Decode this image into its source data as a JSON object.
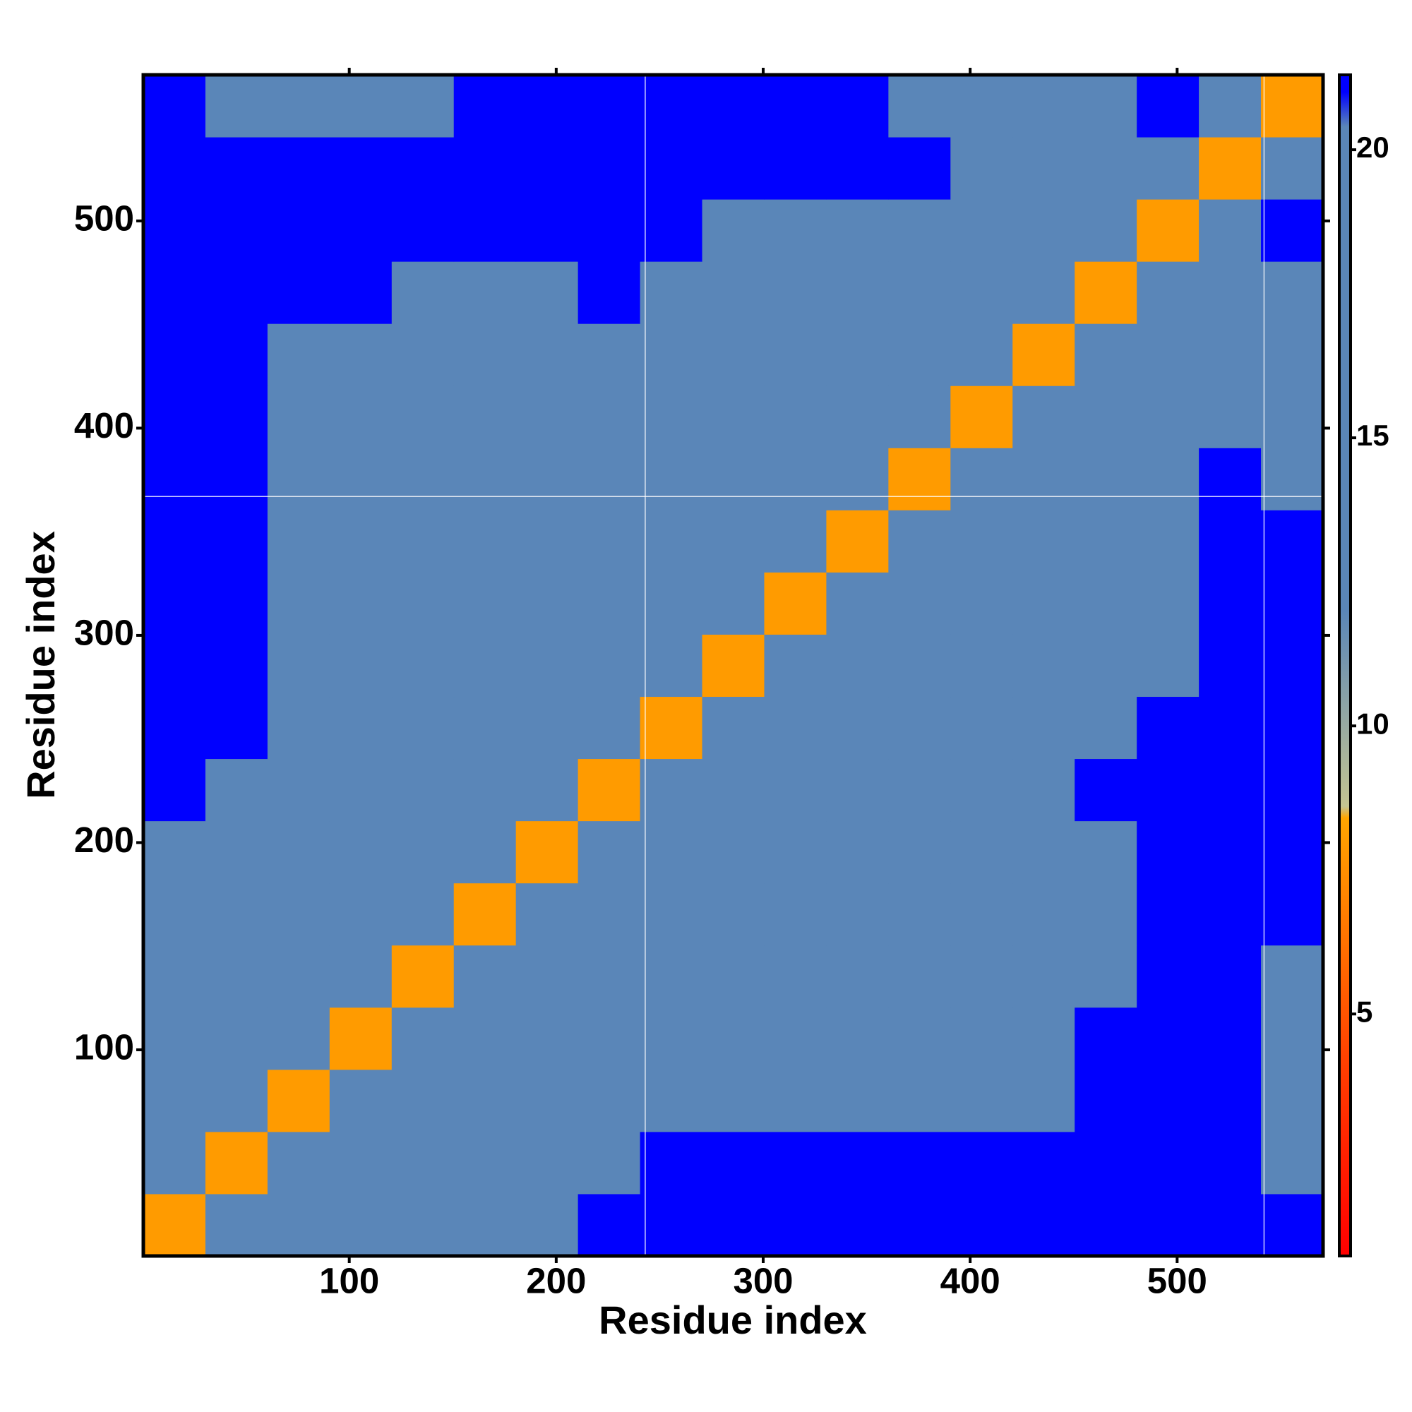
{
  "chart_data": {
    "type": "heatmap",
    "x_label": "Residue index",
    "y_label": "Residue index",
    "bins": [
      0.5,
      30.5,
      60.5,
      90.5,
      120.5,
      150.5,
      180.5,
      210.5,
      240.5,
      270.5,
      300.5,
      330.5,
      360.5,
      390.5,
      420.5,
      450.5,
      480.5,
      510.5,
      540.5,
      570.5
    ],
    "xlim": [
      0.5,
      570.5
    ],
    "ylim": [
      0.5,
      570.5
    ],
    "xticks": [
      100,
      200,
      300,
      400,
      500
    ],
    "yticks": [
      100,
      200,
      300,
      400,
      500
    ],
    "vlines": [
      243,
      542
    ],
    "hlines": [
      367
    ],
    "colorscale": [
      [
        0.8,
        "#ff0000"
      ],
      [
        4,
        "#ff3c00"
      ],
      [
        8.4,
        "#ffa500"
      ],
      [
        8.6,
        "#c4c492"
      ],
      [
        12,
        "#5a86b8"
      ],
      [
        20.4,
        "#5a86b8"
      ],
      [
        21,
        "#0000ff"
      ]
    ],
    "colorbar": {
      "lim": [
        0.8,
        21.3
      ],
      "ticks": [
        5,
        10,
        15,
        20
      ]
    },
    "values": [
      [
        8,
        15,
        15,
        17,
        19,
        19,
        20,
        21,
        21,
        21,
        21,
        21,
        21,
        21,
        21,
        21,
        21,
        21,
        21
      ],
      [
        15,
        8,
        15,
        15,
        17,
        19,
        19,
        20,
        21,
        21,
        21,
        21,
        21,
        21,
        21,
        21,
        21,
        21,
        20
      ],
      [
        15,
        15,
        8,
        15,
        16,
        17,
        18,
        19,
        18,
        17,
        17,
        17,
        17,
        17,
        19,
        21,
        21,
        21,
        16
      ],
      [
        17,
        15,
        15,
        8,
        15,
        17,
        17,
        18,
        18,
        17,
        17,
        17,
        17,
        17,
        18,
        21,
        21,
        21,
        16
      ],
      [
        19,
        17,
        16,
        15,
        8,
        15,
        16,
        17,
        17,
        17,
        17,
        17,
        16,
        16,
        17,
        20,
        21,
        21,
        17
      ],
      [
        19,
        19,
        17,
        17,
        15,
        8,
        15,
        16,
        17,
        17,
        17,
        17,
        17,
        16,
        17,
        20,
        21,
        21,
        21
      ],
      [
        20,
        19,
        18,
        17,
        16,
        15,
        8,
        15,
        16,
        16,
        16,
        15,
        15,
        16,
        17,
        20,
        21,
        21,
        21
      ],
      [
        21,
        20,
        19,
        18,
        17,
        16,
        15,
        8,
        15,
        15,
        15,
        16,
        16,
        17,
        18,
        21,
        21,
        21,
        21
      ],
      [
        21,
        21,
        18,
        18,
        17,
        17,
        16,
        15,
        8,
        15,
        17,
        17,
        17,
        17,
        17,
        20,
        21,
        21,
        21
      ],
      [
        21,
        21,
        17,
        17,
        17,
        17,
        16,
        15,
        15,
        8,
        15,
        15,
        16,
        16,
        16,
        17,
        20,
        21,
        21
      ],
      [
        21,
        21,
        17,
        17,
        17,
        17,
        16,
        15,
        17,
        15,
        8,
        15,
        15,
        16,
        16,
        17,
        20,
        21,
        21
      ],
      [
        21,
        21,
        17,
        17,
        17,
        17,
        15,
        16,
        17,
        15,
        15,
        8,
        15,
        15,
        16,
        17,
        20,
        21,
        21
      ],
      [
        21,
        21,
        17,
        17,
        16,
        17,
        15,
        16,
        17,
        16,
        15,
        15,
        8,
        15,
        15,
        16,
        19,
        21,
        20
      ],
      [
        21,
        21,
        17,
        17,
        16,
        16,
        16,
        17,
        17,
        16,
        16,
        15,
        15,
        8,
        15,
        15,
        17,
        20,
        17
      ],
      [
        21,
        21,
        19,
        18,
        17,
        17,
        17,
        18,
        17,
        16,
        16,
        16,
        15,
        15,
        8,
        15,
        16,
        19,
        18
      ],
      [
        21,
        21,
        21,
        21,
        20,
        20,
        20,
        21,
        20,
        17,
        17,
        17,
        16,
        15,
        15,
        8,
        15,
        18,
        20
      ],
      [
        21,
        21,
        21,
        21,
        21,
        21,
        21,
        21,
        21,
        20,
        20,
        20,
        19,
        17,
        16,
        15,
        8,
        15,
        21
      ],
      [
        21,
        21,
        21,
        21,
        21,
        21,
        21,
        21,
        21,
        21,
        21,
        21,
        21,
        20,
        19,
        18,
        15,
        8,
        15
      ],
      [
        21,
        20,
        16,
        16,
        17,
        21,
        21,
        21,
        21,
        21,
        21,
        21,
        20,
        17,
        18,
        20,
        21,
        15,
        8
      ]
    ]
  }
}
